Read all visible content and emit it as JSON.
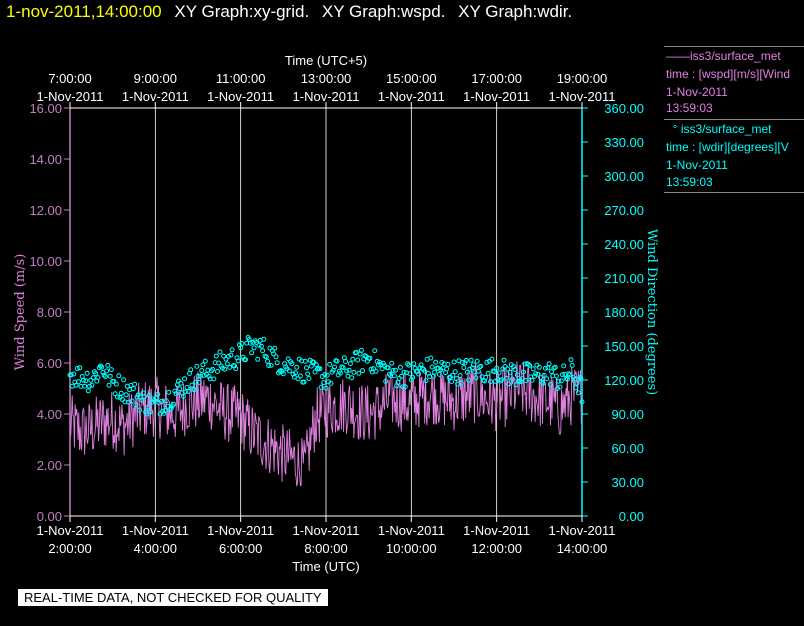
{
  "header": {
    "timestamp": "1-nov-2011,14:00:00",
    "graphs": [
      "XY Graph:xy-grid.",
      "XY Graph:wspd.",
      "XY Graph:wdir."
    ]
  },
  "legend": {
    "ws_line1": "iss3/surface_met",
    "ws_line2": "time : [wspd][m/s][Wind",
    "ws_date": "1-Nov-2011",
    "ws_time": "13:59:03",
    "wd_line1": "iss3/surface_met",
    "wd_line2": "time : [wdir][degrees][V",
    "wd_date": "1-Nov-2011",
    "wd_time": "13:59:03"
  },
  "note": "REAL-TIME DATA, NOT CHECKED FOR QUALITY",
  "colors": {
    "wspd": "#e080e0",
    "wdir": "#00ffff",
    "axis": "#c080c0",
    "grid": "#ffffff"
  },
  "chart_data": {
    "type": "line",
    "xlabel_bottom": "Time (UTC)",
    "xlabel_top": "Time (UTC+5)",
    "ylabel_left": "Wind Speed (m/s)",
    "ylabel_right": "Wind Direction (degrees)",
    "xlim_hours_utc": [
      2.0,
      14.0
    ],
    "bottom_ticks": [
      {
        "hour": 2,
        "date": "1-Nov-2011",
        "time": "2:00:00"
      },
      {
        "hour": 4,
        "date": "1-Nov-2011",
        "time": "4:00:00"
      },
      {
        "hour": 6,
        "date": "1-Nov-2011",
        "time": "6:00:00"
      },
      {
        "hour": 8,
        "date": "1-Nov-2011",
        "time": "8:00:00"
      },
      {
        "hour": 10,
        "date": "1-Nov-2011",
        "time": "10:00:00"
      },
      {
        "hour": 12,
        "date": "1-Nov-2011",
        "time": "12:00:00"
      },
      {
        "hour": 14,
        "date": "1-Nov-2011",
        "time": "14:00:00"
      }
    ],
    "top_ticks": [
      {
        "hour": 2,
        "date": "1-Nov-2011",
        "time": "7:00:00"
      },
      {
        "hour": 4,
        "date": "1-Nov-2011",
        "time": "9:00:00"
      },
      {
        "hour": 6,
        "date": "1-Nov-2011",
        "time": "11:00:00"
      },
      {
        "hour": 8,
        "date": "1-Nov-2011",
        "time": "13:00:00"
      },
      {
        "hour": 10,
        "date": "1-Nov-2011",
        "time": "15:00:00"
      },
      {
        "hour": 12,
        "date": "1-Nov-2011",
        "time": "17:00:00"
      },
      {
        "hour": 14,
        "date": "1-Nov-2011",
        "time": "19:00:00"
      }
    ],
    "left_axis": {
      "ylim": [
        0,
        16
      ],
      "ticks": [
        "0.00",
        "2.00",
        "4.00",
        "6.00",
        "8.00",
        "10.00",
        "12.00",
        "14.00",
        "16.00"
      ]
    },
    "right_axis": {
      "ylim": [
        0,
        360
      ],
      "ticks": [
        "0.00",
        "30.00",
        "60.00",
        "90.00",
        "120.00",
        "150.00",
        "180.00",
        "210.00",
        "240.00",
        "270.00",
        "300.00",
        "330.00",
        "360.00"
      ]
    },
    "series": [
      {
        "name": "iss3/surface_met",
        "axis": "left",
        "style": "line",
        "x_hours": [
          2.0,
          2.25,
          2.5,
          2.75,
          3.0,
          3.25,
          3.5,
          3.75,
          4.0,
          4.25,
          4.5,
          4.75,
          5.0,
          5.25,
          5.5,
          5.75,
          6.0,
          6.25,
          6.5,
          6.75,
          7.0,
          7.25,
          7.5,
          7.75,
          8.0,
          8.25,
          8.5,
          8.75,
          9.0,
          9.25,
          9.5,
          9.75,
          10.0,
          10.25,
          10.5,
          10.75,
          11.0,
          11.25,
          11.5,
          11.75,
          12.0,
          12.25,
          12.5,
          12.75,
          13.0,
          13.25,
          13.5,
          13.75,
          14.0
        ],
        "values": [
          3.6,
          3.3,
          3.4,
          3.7,
          3.8,
          3.5,
          3.9,
          4.2,
          4.3,
          4.1,
          4.0,
          4.4,
          4.5,
          4.6,
          4.2,
          4.0,
          3.9,
          3.3,
          3.0,
          2.7,
          2.4,
          2.2,
          1.8,
          3.8,
          4.2,
          4.3,
          4.4,
          4.1,
          4.0,
          4.2,
          4.6,
          4.5,
          4.4,
          4.7,
          4.8,
          4.6,
          4.5,
          4.7,
          4.8,
          4.6,
          4.5,
          4.7,
          5.0,
          4.8,
          4.6,
          4.5,
          4.2,
          4.7,
          4.8
        ],
        "range": [
          1.2,
          6.2
        ]
      },
      {
        "name": "iss3/surface_met",
        "axis": "right",
        "style": "circles",
        "x_hours": [
          2.0,
          2.25,
          2.5,
          2.75,
          3.0,
          3.25,
          3.5,
          3.75,
          4.0,
          4.25,
          4.5,
          4.75,
          5.0,
          5.25,
          5.5,
          5.75,
          6.0,
          6.25,
          6.5,
          6.75,
          7.0,
          7.25,
          7.5,
          7.75,
          8.0,
          8.25,
          8.5,
          8.75,
          9.0,
          9.25,
          9.5,
          9.75,
          10.0,
          10.25,
          10.5,
          10.75,
          11.0,
          11.25,
          11.5,
          11.75,
          12.0,
          12.25,
          12.5,
          12.75,
          13.0,
          13.25,
          13.5,
          13.75,
          14.0
        ],
        "values": [
          125,
          123,
          120,
          132,
          118,
          112,
          108,
          100,
          98,
          102,
          110,
          118,
          124,
          128,
          134,
          138,
          142,
          150,
          148,
          140,
          134,
          132,
          128,
          125,
          122,
          128,
          130,
          135,
          140,
          132,
          126,
          124,
          126,
          128,
          130,
          128,
          127,
          128,
          129,
          128,
          130,
          126,
          125,
          124,
          125,
          126,
          120,
          128,
          110
        ],
        "range": [
          90,
          185
        ]
      }
    ]
  }
}
